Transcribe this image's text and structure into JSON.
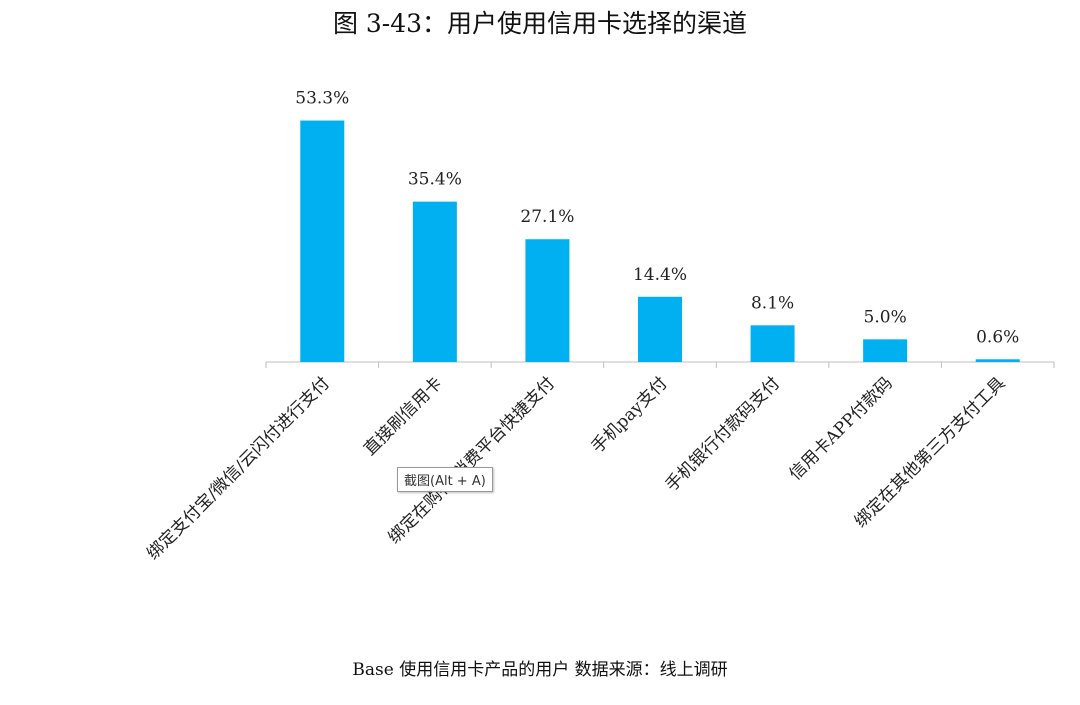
{
  "chart_data": {
    "type": "bar",
    "title": "图 3-43：用户使用信用卡选择的渠道",
    "categories": [
      "绑定支付宝/微信/云闪付进行支付",
      "直接刷信用卡",
      "绑定在购物/消费平台快捷支付",
      "手机pay支付",
      "手机银行付款码支付",
      "信用卡APP付款码",
      "绑定在其他第三方支付工具"
    ],
    "values": [
      53.3,
      35.4,
      27.1,
      14.4,
      8.1,
      5.0,
      0.6
    ],
    "value_labels": [
      "53.3%",
      "35.4%",
      "27.1%",
      "14.4%",
      "8.1%",
      "5.0%",
      "0.6%"
    ],
    "unit": "%",
    "bar_color": "#00b0f0",
    "xlabel": "",
    "ylabel": "",
    "grid": false,
    "legend": "none"
  },
  "footnote": "Base 使用信用卡产品的用户 数据来源：线上调研",
  "tooltip": "截图(Alt + A)"
}
